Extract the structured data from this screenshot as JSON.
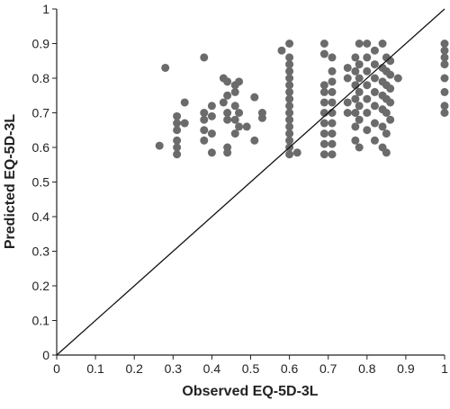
{
  "chart_data": {
    "type": "scatter",
    "x_label": "Observed EQ-5D-3L",
    "y_label": "Predicted EQ-5D-3L",
    "color": "#6b6b6b",
    "diagonal": true,
    "xlim": [
      0,
      1
    ],
    "ylim": [
      0,
      1
    ],
    "xticks": [
      0,
      0.1,
      0.2,
      0.3,
      0.4,
      0.5,
      0.6,
      0.7,
      0.8,
      0.9,
      1
    ],
    "yticks": [
      0,
      0.1,
      0.2,
      0.3,
      0.4,
      0.5,
      0.6,
      0.7,
      0.8,
      0.9,
      1
    ],
    "x": [
      0.265,
      0.28,
      0.31,
      0.31,
      0.31,
      0.31,
      0.31,
      0.31,
      0.33,
      0.33,
      0.38,
      0.38,
      0.38,
      0.38,
      0.38,
      0.4,
      0.4,
      0.4,
      0.4,
      0.43,
      0.43,
      0.44,
      0.44,
      0.44,
      0.44,
      0.44,
      0.44,
      0.46,
      0.46,
      0.46,
      0.46,
      0.46,
      0.47,
      0.47,
      0.47,
      0.49,
      0.51,
      0.51,
      0.53,
      0.53,
      0.58,
      0.62,
      0.6,
      0.6,
      0.6,
      0.6,
      0.6,
      0.6,
      0.6,
      0.6,
      0.6,
      0.6,
      0.6,
      0.6,
      0.6,
      0.6,
      0.6,
      0.6,
      0.69,
      0.69,
      0.69,
      0.69,
      0.69,
      0.69,
      0.69,
      0.69,
      0.69,
      0.69,
      0.71,
      0.71,
      0.71,
      0.71,
      0.71,
      0.71,
      0.71,
      0.71,
      0.71,
      0.71,
      0.75,
      0.75,
      0.75,
      0.75,
      0.77,
      0.77,
      0.77,
      0.77,
      0.77,
      0.77,
      0.77,
      0.78,
      0.78,
      0.78,
      0.78,
      0.78,
      0.78,
      0.78,
      0.8,
      0.8,
      0.8,
      0.8,
      0.8,
      0.8,
      0.8,
      0.82,
      0.82,
      0.82,
      0.82,
      0.82,
      0.82,
      0.82,
      0.84,
      0.84,
      0.84,
      0.84,
      0.84,
      0.84,
      0.84,
      0.85,
      0.85,
      0.85,
      0.85,
      0.85,
      0.85,
      0.85,
      0.86,
      0.86,
      0.86,
      0.86,
      0.86,
      0.88,
      1,
      1,
      1,
      1,
      1,
      1,
      1,
      1
    ],
    "values": [
      0.605,
      0.83,
      0.58,
      0.6,
      0.62,
      0.65,
      0.67,
      0.69,
      0.73,
      0.67,
      0.86,
      0.7,
      0.68,
      0.65,
      0.62,
      0.72,
      0.69,
      0.64,
      0.585,
      0.8,
      0.73,
      0.79,
      0.75,
      0.7,
      0.68,
      0.6,
      0.585,
      0.78,
      0.76,
      0.72,
      0.68,
      0.64,
      0.79,
      0.7,
      0.66,
      0.66,
      0.745,
      0.62,
      0.7,
      0.685,
      0.88,
      0.585,
      0.58,
      0.6,
      0.62,
      0.64,
      0.66,
      0.68,
      0.7,
      0.72,
      0.74,
      0.76,
      0.78,
      0.8,
      0.82,
      0.84,
      0.86,
      0.9,
      0.9,
      0.87,
      0.58,
      0.61,
      0.64,
      0.67,
      0.7,
      0.73,
      0.76,
      0.78,
      0.58,
      0.61,
      0.64,
      0.67,
      0.7,
      0.73,
      0.76,
      0.79,
      0.82,
      0.86,
      0.7,
      0.73,
      0.8,
      0.83,
      0.62,
      0.66,
      0.7,
      0.74,
      0.78,
      0.82,
      0.86,
      0.6,
      0.68,
      0.72,
      0.76,
      0.8,
      0.84,
      0.9,
      0.65,
      0.7,
      0.74,
      0.78,
      0.82,
      0.86,
      0.9,
      0.62,
      0.67,
      0.72,
      0.76,
      0.8,
      0.84,
      0.88,
      0.6,
      0.66,
      0.71,
      0.75,
      0.79,
      0.83,
      0.9,
      0.585,
      0.64,
      0.7,
      0.74,
      0.78,
      0.82,
      0.86,
      0.68,
      0.73,
      0.77,
      0.81,
      0.85,
      0.8,
      0.7,
      0.72,
      0.76,
      0.8,
      0.84,
      0.86,
      0.88,
      0.9
    ]
  }
}
